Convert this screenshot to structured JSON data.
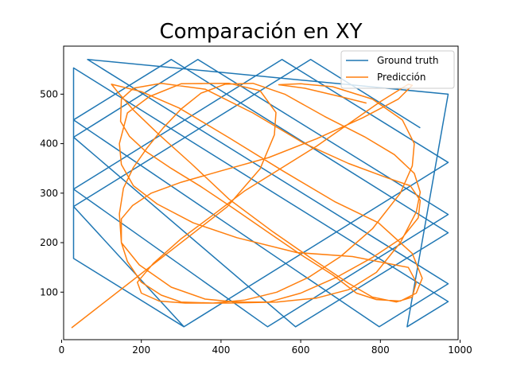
{
  "chart_data": {
    "type": "line",
    "title": "Comparación en XY",
    "xlabel": "",
    "ylabel": "",
    "xlim": [
      5,
      995
    ],
    "ylim": [
      4,
      597
    ],
    "xticks": [
      0,
      200,
      400,
      600,
      800,
      1000
    ],
    "yticks": [
      100,
      200,
      300,
      400,
      500
    ],
    "grid": false,
    "legend_position": "top-right",
    "series": [
      {
        "name": "Ground truth",
        "color": "#1f77b4",
        "points": [
          [
            900,
            432
          ],
          [
            625,
            570
          ],
          [
            30,
            273
          ],
          [
            307,
            30
          ],
          [
            970,
            362
          ],
          [
            553,
            570
          ],
          [
            30,
            308
          ],
          [
            517,
            30
          ],
          [
            970,
            257
          ],
          [
            342,
            570
          ],
          [
            30,
            413
          ],
          [
            587,
            30
          ],
          [
            970,
            220
          ],
          [
            275,
            570
          ],
          [
            30,
            448
          ],
          [
            797,
            30
          ],
          [
            970,
            117
          ],
          [
            65,
            570
          ],
          [
            970,
            500
          ],
          [
            867,
            30
          ],
          [
            970,
            81
          ],
          [
            30,
            553
          ],
          [
            30,
            168
          ],
          [
            307,
            30
          ]
        ]
      },
      {
        "name": "Predicción",
        "color": "#ff7f0e",
        "points": [
          [
            25,
            28
          ],
          [
            415,
            272
          ],
          [
            498,
            349
          ],
          [
            534,
            418
          ],
          [
            538,
            463
          ],
          [
            498,
            507
          ],
          [
            420,
            522
          ],
          [
            300,
            521
          ],
          [
            220,
            495
          ],
          [
            165,
            462
          ],
          [
            145,
            400
          ],
          [
            150,
            358
          ],
          [
            180,
            315
          ],
          [
            240,
            278
          ],
          [
            330,
            240
          ],
          [
            440,
            210
          ],
          [
            590,
            180
          ],
          [
            730,
            172
          ],
          [
            870,
            150
          ],
          [
            890,
            120
          ],
          [
            880,
            90
          ],
          [
            840,
            80
          ],
          [
            780,
            90
          ],
          [
            720,
            118
          ],
          [
            620,
            172
          ],
          [
            530,
            222
          ],
          [
            420,
            288
          ],
          [
            325,
            360
          ],
          [
            245,
            418
          ],
          [
            180,
            468
          ],
          [
            140,
            505
          ],
          [
            125,
            520
          ],
          [
            200,
            505
          ],
          [
            295,
            472
          ],
          [
            420,
            412
          ],
          [
            555,
            345
          ],
          [
            685,
            283
          ],
          [
            795,
            240
          ],
          [
            880,
            178
          ],
          [
            905,
            128
          ],
          [
            890,
            98
          ],
          [
            850,
            82
          ],
          [
            790,
            85
          ],
          [
            740,
            98
          ],
          [
            680,
            135
          ],
          [
            600,
            176
          ],
          [
            520,
            220
          ],
          [
            430,
            270
          ],
          [
            350,
            313
          ],
          [
            275,
            350
          ],
          [
            210,
            385
          ],
          [
            170,
            415
          ],
          [
            148,
            445
          ],
          [
            150,
            490
          ],
          [
            180,
            512
          ],
          [
            250,
            522
          ],
          [
            360,
            510
          ],
          [
            480,
            462
          ],
          [
            610,
            400
          ],
          [
            720,
            360
          ],
          [
            820,
            330
          ],
          [
            875,
            315
          ],
          [
            900,
            285
          ],
          [
            895,
            250
          ],
          [
            855,
            210
          ],
          [
            780,
            170
          ],
          [
            690,
            130
          ],
          [
            600,
            98
          ],
          [
            520,
            80
          ],
          [
            440,
            80
          ],
          [
            360,
            86
          ],
          [
            275,
            110
          ],
          [
            195,
            155
          ],
          [
            150,
            200
          ],
          [
            150,
            248
          ],
          [
            178,
            275
          ],
          [
            225,
            300
          ],
          [
            300,
            322
          ],
          [
            400,
            345
          ],
          [
            520,
            372
          ],
          [
            640,
            410
          ],
          [
            755,
            452
          ],
          [
            845,
            490
          ],
          [
            880,
            518
          ],
          [
            870,
            520
          ],
          [
            800,
            485
          ],
          [
            720,
            440
          ],
          [
            640,
            395
          ],
          [
            550,
            350
          ],
          [
            460,
            305
          ],
          [
            380,
            256
          ],
          [
            300,
            208
          ],
          [
            230,
            158
          ],
          [
            190,
            120
          ],
          [
            200,
            98
          ],
          [
            245,
            82
          ],
          [
            310,
            78
          ],
          [
            420,
            78
          ],
          [
            540,
            80
          ],
          [
            640,
            88
          ],
          [
            720,
            105
          ],
          [
            790,
            140
          ],
          [
            850,
            200
          ],
          [
            890,
            262
          ],
          [
            900,
            302
          ],
          [
            885,
            340
          ],
          [
            835,
            378
          ],
          [
            760,
            414
          ],
          [
            660,
            455
          ],
          [
            560,
            500
          ],
          [
            480,
            522
          ],
          [
            410,
            520
          ],
          [
            350,
            502
          ],
          [
            300,
            470
          ],
          [
            255,
            432
          ],
          [
            215,
            392
          ],
          [
            180,
            352
          ],
          [
            155,
            310
          ],
          [
            145,
            258
          ],
          [
            150,
            200
          ],
          [
            165,
            162
          ],
          [
            200,
            120
          ],
          [
            250,
            94
          ],
          [
            300,
            80
          ],
          [
            380,
            78
          ],
          [
            460,
            84
          ],
          [
            540,
            100
          ],
          [
            620,
            130
          ],
          [
            700,
            172
          ],
          [
            780,
            228
          ],
          [
            850,
            300
          ],
          [
            880,
            355
          ],
          [
            885,
            400
          ],
          [
            855,
            448
          ],
          [
            780,
            490
          ],
          [
            680,
            515
          ],
          [
            600,
            521
          ],
          [
            545,
            519
          ],
          [
            610,
            512
          ],
          [
            700,
            495
          ],
          [
            765,
            482
          ]
        ]
      }
    ]
  }
}
